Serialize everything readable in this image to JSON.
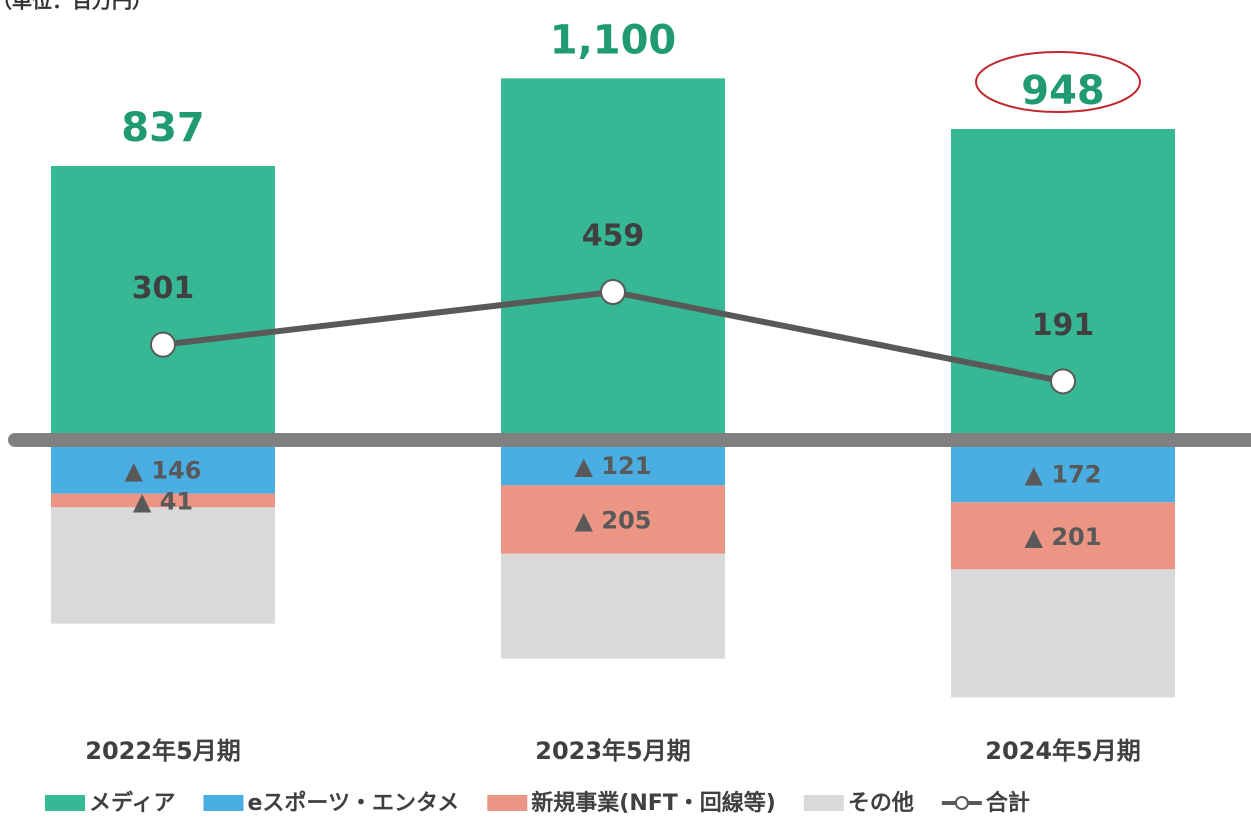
{
  "chart_data": {
    "type": "bar",
    "subtitle": "（単位：百万円）",
    "categories": [
      "2022年5月期",
      "2023年5月期",
      "2024年5月期"
    ],
    "ylim": [
      -900,
      1200
    ],
    "series": [
      {
        "name": "メディア",
        "color": "#35b893",
        "values": [
          837,
          1100,
          948
        ],
        "value_labels": [
          "837",
          "1,100",
          "948"
        ]
      },
      {
        "name": "eスポーツ・エンタメ",
        "color": "#4aaee3",
        "values": [
          -146,
          -121,
          -172
        ],
        "value_labels": [
          "▲ 146",
          "▲ 121",
          "▲ 172"
        ]
      },
      {
        "name": "新規事業(NFT・回線等)",
        "color": "#ec9585",
        "values": [
          -41,
          -205,
          -201
        ],
        "value_labels": [
          "▲ 41",
          "▲ 205",
          "▲ 201"
        ]
      },
      {
        "name": "その他",
        "color": "#d9d9d9",
        "values": [
          -349,
          -315,
          -384
        ]
      },
      {
        "name": "合計",
        "type": "line",
        "color": "#595959",
        "values": [
          301,
          459,
          191
        ]
      }
    ]
  }
}
